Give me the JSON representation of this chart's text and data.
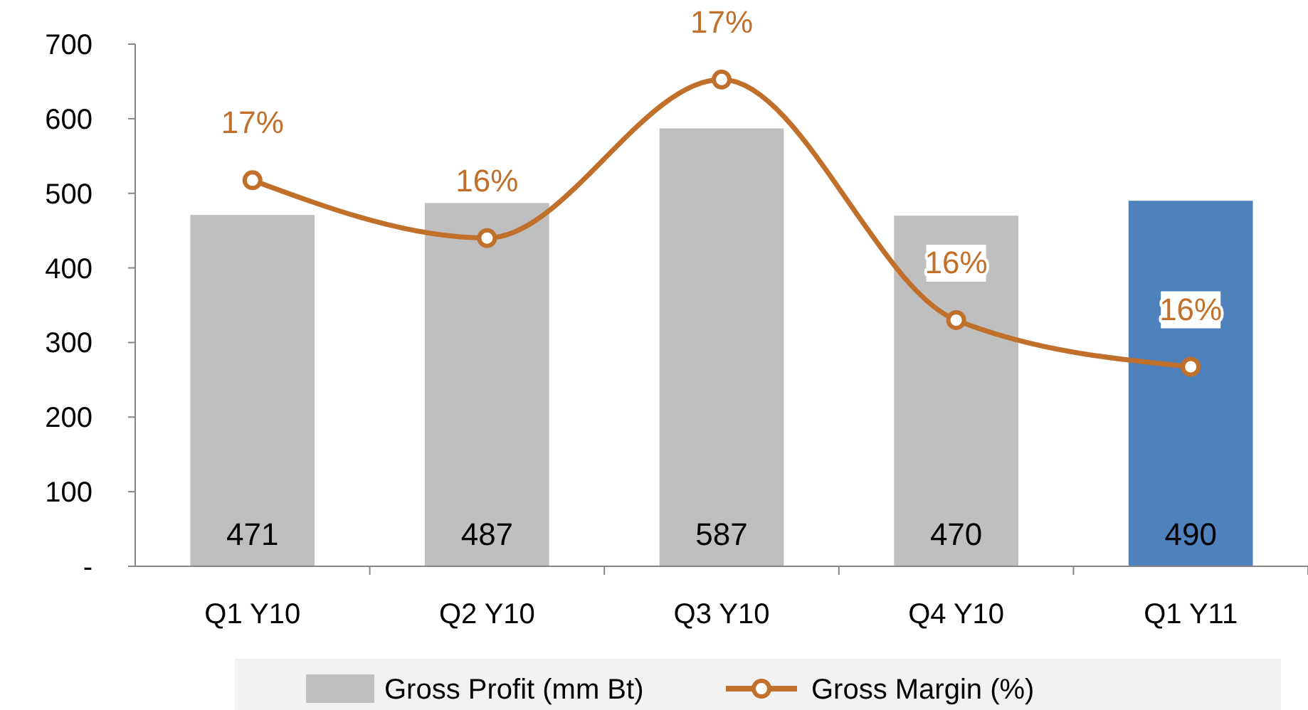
{
  "chart_data": {
    "type": "bar",
    "categories": [
      "Q1 Y10",
      "Q2 Y10",
      "Q3 Y10",
      "Q4 Y10",
      "Q1 Y11"
    ],
    "series": [
      {
        "name": "Gross Profit (mm Bt)",
        "color": "#bfbfbf",
        "colors": [
          "#bfbfbf",
          "#bfbfbf",
          "#bfbfbf",
          "#bfbfbf",
          "#4f81bd"
        ],
        "values": [
          471,
          487,
          587,
          470,
          490
        ]
      },
      {
        "name": "Gross Margin (%)",
        "type": "line",
        "axis": "y2",
        "color": "#c0702a",
        "values": [
          16.57,
          16.26,
          17.11,
          15.82,
          15.57
        ],
        "value_labels": [
          "17%",
          "16%",
          "17%",
          "16%",
          "16%"
        ]
      }
    ],
    "ylim": [
      0,
      700
    ],
    "yticks": [
      {
        "value": 0,
        "label": "-"
      },
      100,
      200,
      300,
      400,
      500,
      600,
      700
    ],
    "y2lim": [
      14.5,
      17.3
    ],
    "data_labels": true,
    "grid": false,
    "legend": "bottom",
    "marker": "circle",
    "line_style": "solid"
  }
}
